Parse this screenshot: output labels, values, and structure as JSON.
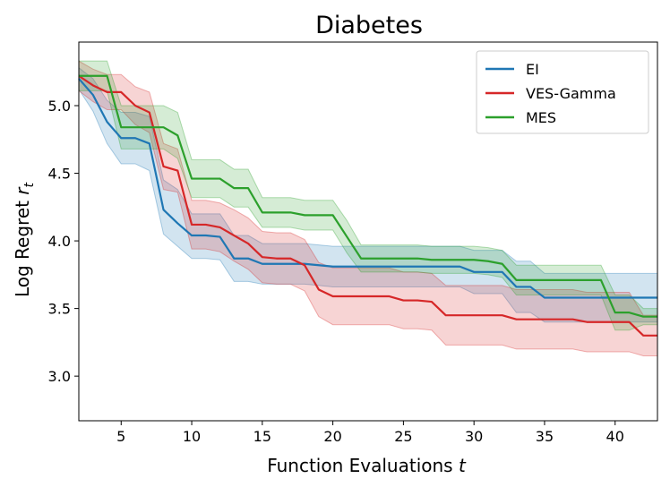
{
  "chart_data": {
    "type": "line",
    "title": "Diabetes",
    "xlabel": "Function Evaluations",
    "xlabel_var": "t",
    "ylabel": "Log Regret",
    "ylabel_var": "r",
    "ylabel_sub": "t",
    "xlim": [
      2,
      43
    ],
    "ylim": [
      2.67,
      5.47
    ],
    "x_ticks": [
      5,
      10,
      15,
      20,
      25,
      30,
      35,
      40
    ],
    "y_ticks": [
      3.0,
      3.5,
      4.0,
      4.5,
      5.0
    ],
    "grid": false,
    "legend_position": "top-right",
    "series": [
      {
        "name": "EI",
        "color": "#1f77b4",
        "points": [
          [
            2,
            5.2
          ],
          [
            3,
            5.08
          ],
          [
            4,
            4.88
          ],
          [
            5,
            4.76
          ],
          [
            6,
            4.76
          ],
          [
            7,
            4.72
          ],
          [
            8,
            4.23
          ],
          [
            9,
            4.13
          ],
          [
            10,
            4.04
          ],
          [
            11,
            4.04
          ],
          [
            12,
            4.03
          ],
          [
            13,
            3.87
          ],
          [
            14,
            3.87
          ],
          [
            15,
            3.83
          ],
          [
            16,
            3.83
          ],
          [
            17,
            3.83
          ],
          [
            18,
            3.83
          ],
          [
            19,
            3.82
          ],
          [
            20,
            3.81
          ],
          [
            21,
            3.81
          ],
          [
            22,
            3.81
          ],
          [
            23,
            3.81
          ],
          [
            24,
            3.81
          ],
          [
            25,
            3.81
          ],
          [
            26,
            3.81
          ],
          [
            27,
            3.81
          ],
          [
            28,
            3.81
          ],
          [
            29,
            3.81
          ],
          [
            30,
            3.77
          ],
          [
            31,
            3.77
          ],
          [
            32,
            3.77
          ],
          [
            33,
            3.66
          ],
          [
            34,
            3.66
          ],
          [
            35,
            3.58
          ],
          [
            36,
            3.58
          ],
          [
            37,
            3.58
          ],
          [
            38,
            3.58
          ],
          [
            39,
            3.58
          ],
          [
            40,
            3.58
          ],
          [
            41,
            3.58
          ],
          [
            42,
            3.58
          ],
          [
            43,
            3.58
          ]
        ],
        "upper": [
          5.28,
          5.2,
          5.04,
          4.95,
          4.95,
          4.92,
          4.45,
          4.38,
          4.2,
          4.2,
          4.2,
          4.04,
          4.04,
          3.98,
          3.98,
          3.98,
          3.98,
          3.97,
          3.96,
          3.96,
          3.96,
          3.96,
          3.96,
          3.96,
          3.96,
          3.96,
          3.96,
          3.96,
          3.93,
          3.93,
          3.93,
          3.85,
          3.85,
          3.76,
          3.76,
          3.76,
          3.76,
          3.76,
          3.76,
          3.76,
          3.76,
          3.76
        ],
        "lower": [
          5.12,
          4.96,
          4.72,
          4.57,
          4.57,
          4.52,
          4.05,
          3.96,
          3.87,
          3.87,
          3.86,
          3.7,
          3.7,
          3.68,
          3.68,
          3.68,
          3.68,
          3.67,
          3.66,
          3.66,
          3.66,
          3.66,
          3.66,
          3.66,
          3.66,
          3.66,
          3.66,
          3.66,
          3.61,
          3.61,
          3.61,
          3.47,
          3.47,
          3.4,
          3.4,
          3.4,
          3.4,
          3.4,
          3.4,
          3.4,
          3.4,
          3.4
        ]
      },
      {
        "name": "VES-Gamma",
        "color": "#d62728",
        "points": [
          [
            2,
            5.22
          ],
          [
            3,
            5.15
          ],
          [
            4,
            5.1
          ],
          [
            5,
            5.1
          ],
          [
            6,
            5.0
          ],
          [
            7,
            4.95
          ],
          [
            8,
            4.55
          ],
          [
            9,
            4.52
          ],
          [
            10,
            4.12
          ],
          [
            11,
            4.12
          ],
          [
            12,
            4.1
          ],
          [
            13,
            4.04
          ],
          [
            14,
            3.98
          ],
          [
            15,
            3.88
          ],
          [
            16,
            3.87
          ],
          [
            17,
            3.87
          ],
          [
            18,
            3.82
          ],
          [
            19,
            3.64
          ],
          [
            20,
            3.59
          ],
          [
            21,
            3.59
          ],
          [
            22,
            3.59
          ],
          [
            23,
            3.59
          ],
          [
            24,
            3.59
          ],
          [
            25,
            3.56
          ],
          [
            26,
            3.56
          ],
          [
            27,
            3.55
          ],
          [
            28,
            3.45
          ],
          [
            29,
            3.45
          ],
          [
            30,
            3.45
          ],
          [
            31,
            3.45
          ],
          [
            32,
            3.45
          ],
          [
            33,
            3.42
          ],
          [
            34,
            3.42
          ],
          [
            35,
            3.42
          ],
          [
            36,
            3.42
          ],
          [
            37,
            3.42
          ],
          [
            38,
            3.4
          ],
          [
            39,
            3.4
          ],
          [
            40,
            3.4
          ],
          [
            41,
            3.4
          ],
          [
            42,
            3.3
          ],
          [
            43,
            3.3
          ]
        ],
        "upper": [
          5.33,
          5.27,
          5.23,
          5.23,
          5.14,
          5.1,
          4.72,
          4.68,
          4.3,
          4.3,
          4.28,
          4.23,
          4.17,
          4.07,
          4.06,
          4.06,
          4.01,
          3.84,
          3.8,
          3.8,
          3.8,
          3.8,
          3.8,
          3.77,
          3.77,
          3.76,
          3.67,
          3.67,
          3.67,
          3.67,
          3.67,
          3.64,
          3.64,
          3.64,
          3.64,
          3.64,
          3.62,
          3.62,
          3.62,
          3.62,
          3.45,
          3.45
        ],
        "lower": [
          5.11,
          5.03,
          4.97,
          4.97,
          4.86,
          4.8,
          4.38,
          4.36,
          3.94,
          3.94,
          3.92,
          3.85,
          3.79,
          3.69,
          3.68,
          3.68,
          3.63,
          3.44,
          3.38,
          3.38,
          3.38,
          3.38,
          3.38,
          3.35,
          3.35,
          3.34,
          3.23,
          3.23,
          3.23,
          3.23,
          3.23,
          3.2,
          3.2,
          3.2,
          3.2,
          3.2,
          3.18,
          3.18,
          3.18,
          3.18,
          3.15,
          3.15
        ]
      },
      {
        "name": "MES",
        "color": "#2ca02c",
        "points": [
          [
            2,
            5.22
          ],
          [
            3,
            5.22
          ],
          [
            4,
            5.22
          ],
          [
            5,
            4.84
          ],
          [
            6,
            4.84
          ],
          [
            7,
            4.84
          ],
          [
            8,
            4.84
          ],
          [
            9,
            4.78
          ],
          [
            10,
            4.46
          ],
          [
            11,
            4.46
          ],
          [
            12,
            4.46
          ],
          [
            13,
            4.39
          ],
          [
            14,
            4.39
          ],
          [
            15,
            4.21
          ],
          [
            16,
            4.21
          ],
          [
            17,
            4.21
          ],
          [
            18,
            4.19
          ],
          [
            19,
            4.19
          ],
          [
            20,
            4.19
          ],
          [
            21,
            4.03
          ],
          [
            22,
            3.87
          ],
          [
            23,
            3.87
          ],
          [
            24,
            3.87
          ],
          [
            25,
            3.87
          ],
          [
            26,
            3.87
          ],
          [
            27,
            3.86
          ],
          [
            28,
            3.86
          ],
          [
            29,
            3.86
          ],
          [
            30,
            3.86
          ],
          [
            31,
            3.85
          ],
          [
            32,
            3.83
          ],
          [
            33,
            3.71
          ],
          [
            34,
            3.71
          ],
          [
            35,
            3.71
          ],
          [
            36,
            3.71
          ],
          [
            37,
            3.71
          ],
          [
            38,
            3.71
          ],
          [
            39,
            3.71
          ],
          [
            40,
            3.47
          ],
          [
            41,
            3.47
          ],
          [
            42,
            3.44
          ],
          [
            43,
            3.44
          ]
        ],
        "upper": [
          5.33,
          5.33,
          5.33,
          5.0,
          5.0,
          5.0,
          5.0,
          4.95,
          4.6,
          4.6,
          4.6,
          4.53,
          4.53,
          4.32,
          4.32,
          4.32,
          4.3,
          4.3,
          4.3,
          4.15,
          3.97,
          3.97,
          3.97,
          3.97,
          3.97,
          3.96,
          3.96,
          3.96,
          3.96,
          3.95,
          3.93,
          3.82,
          3.82,
          3.82,
          3.82,
          3.82,
          3.82,
          3.82,
          3.6,
          3.6,
          3.5,
          3.5
        ],
        "lower": [
          5.11,
          5.11,
          5.11,
          4.68,
          4.68,
          4.68,
          4.68,
          4.61,
          4.32,
          4.32,
          4.32,
          4.25,
          4.25,
          4.1,
          4.1,
          4.1,
          4.08,
          4.08,
          4.08,
          3.91,
          3.77,
          3.77,
          3.77,
          3.77,
          3.77,
          3.76,
          3.76,
          3.76,
          3.76,
          3.75,
          3.73,
          3.6,
          3.6,
          3.6,
          3.6,
          3.6,
          3.6,
          3.6,
          3.34,
          3.34,
          3.38,
          3.38
        ]
      }
    ]
  }
}
